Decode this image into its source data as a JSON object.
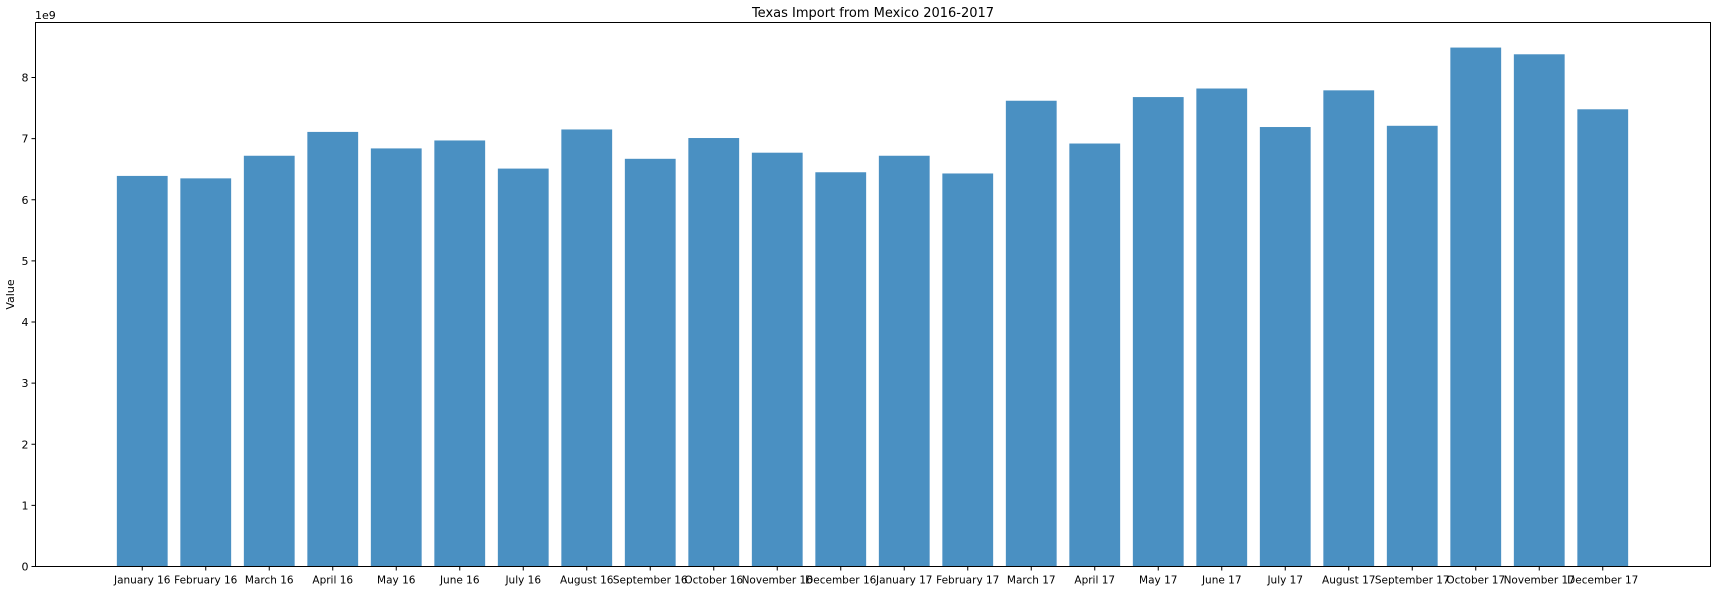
{
  "chart_data": {
    "type": "bar",
    "title": "Texas Import from Mexico 2016-2017",
    "xlabel": "",
    "ylabel": "Value",
    "scale_label": "1e9",
    "ylim": [
      0,
      8.9
    ],
    "yticks": [
      0,
      1,
      2,
      3,
      4,
      5,
      6,
      7,
      8
    ],
    "grid": false,
    "bar_color": "#4a90c2",
    "categories": [
      "January 16",
      "February 16",
      "March 16",
      "April 16",
      "May 16",
      "June 16",
      "July 16",
      "August 16",
      "September 16",
      "October 16",
      "November 16",
      "December 16",
      "January 17",
      "February 17",
      "March 17",
      "April 17",
      "May 17",
      "June 17",
      "July 17",
      "August 17",
      "September 17",
      "October 17",
      "November 17",
      "December 17"
    ],
    "values": [
      6.39,
      6.35,
      6.72,
      7.11,
      6.84,
      6.97,
      6.51,
      7.15,
      6.67,
      7.01,
      6.77,
      6.45,
      6.72,
      6.43,
      7.62,
      6.92,
      7.68,
      7.82,
      7.19,
      7.79,
      7.21,
      8.49,
      8.38,
      7.48
    ]
  }
}
